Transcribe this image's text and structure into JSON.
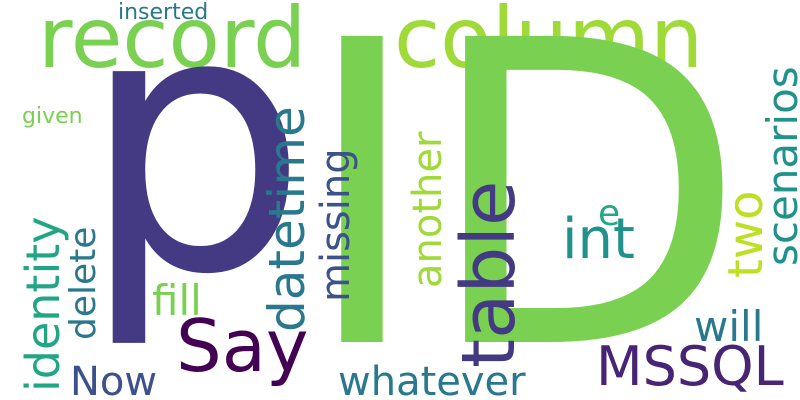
{
  "words": [
    {
      "id": "inserted",
      "text": "inserted",
      "color": "#2a788e"
    },
    {
      "id": "record",
      "text": "record",
      "color": "#7ad151"
    },
    {
      "id": "column",
      "text": "column",
      "color": "#a0da39"
    },
    {
      "id": "given",
      "text": "given",
      "color": "#7ad151"
    },
    {
      "id": "p",
      "text": "p",
      "color": "#443983"
    },
    {
      "id": "ID",
      "text": "ID",
      "color": "#7ad151"
    },
    {
      "id": "identity",
      "text": "identity",
      "color": "#21a685"
    },
    {
      "id": "delete",
      "text": "delete",
      "color": "#2a788e"
    },
    {
      "id": "datetime",
      "text": "datetime",
      "color": "#2a788e"
    },
    {
      "id": "missing",
      "text": "missing",
      "color": "#3b528b"
    },
    {
      "id": "table",
      "text": "table",
      "color": "#443983"
    },
    {
      "id": "another",
      "text": "another",
      "color": "#a0da39"
    },
    {
      "id": "int",
      "text": "int",
      "color": "#21918c"
    },
    {
      "id": "e",
      "text": "e",
      "color": "#22a884"
    },
    {
      "id": "two",
      "text": "two",
      "color": "#bddf26"
    },
    {
      "id": "scenarios",
      "text": "scenarios",
      "color": "#21918c"
    },
    {
      "id": "fill",
      "text": "fill",
      "color": "#7ad151"
    },
    {
      "id": "Say",
      "text": "Say",
      "color": "#440154"
    },
    {
      "id": "MSSQL",
      "text": "MSSQL",
      "color": "#482475"
    },
    {
      "id": "will",
      "text": "will",
      "color": "#2a788e"
    },
    {
      "id": "Now",
      "text": "Now",
      "color": "#3b528b"
    },
    {
      "id": "whatever",
      "text": "whatever",
      "color": "#2a788e"
    }
  ]
}
